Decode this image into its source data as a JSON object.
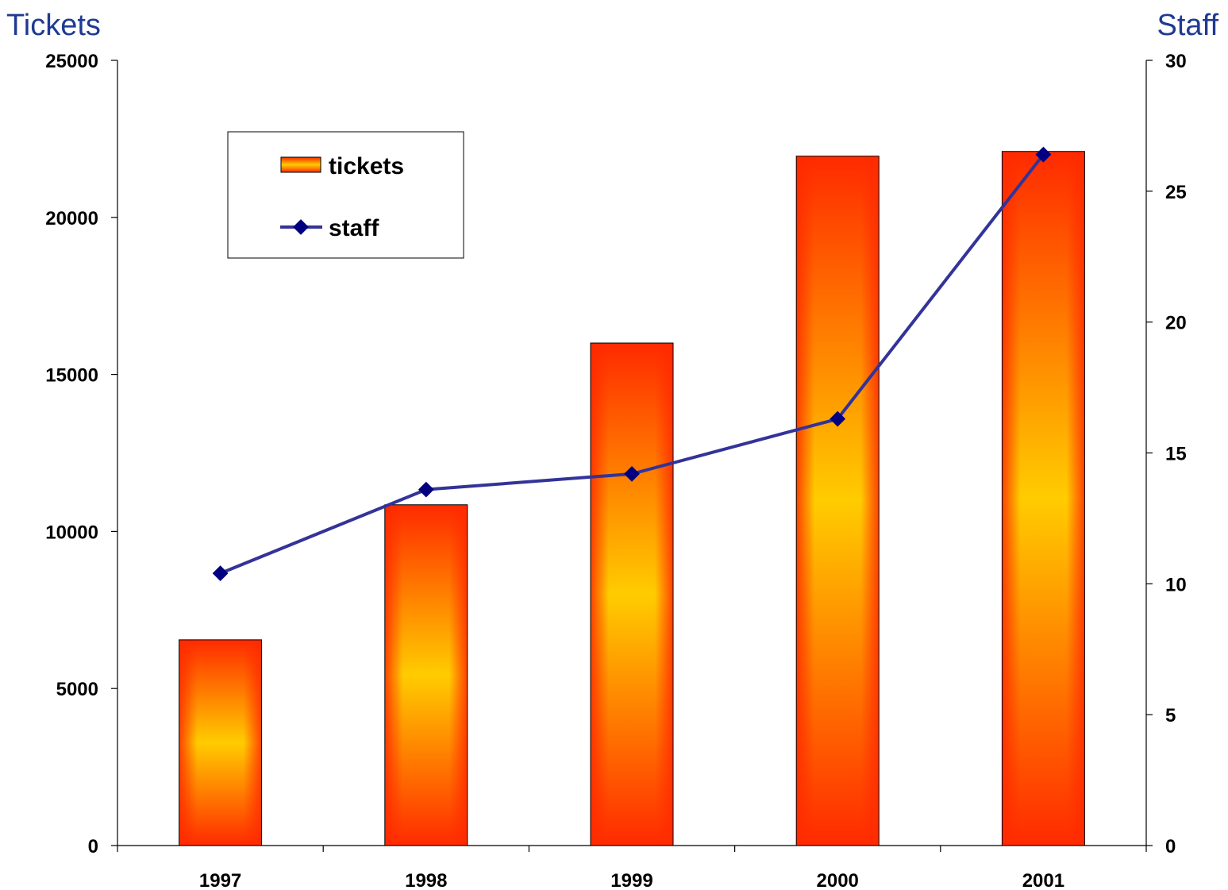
{
  "chart_data": {
    "type": "bar",
    "categories": [
      "1997",
      "1998",
      "1999",
      "2000",
      "2001"
    ],
    "series": [
      {
        "name": "tickets",
        "type": "bar",
        "axis": "left",
        "values": [
          6550,
          10850,
          16000,
          21950,
          22100
        ]
      },
      {
        "name": "staff",
        "type": "line",
        "axis": "right",
        "values": [
          10.4,
          13.6,
          14.2,
          16.3,
          26.4
        ]
      }
    ],
    "y_left": {
      "label": "Tickets",
      "ylim": [
        0,
        25000
      ],
      "ticks": [
        "0",
        "5000",
        "10000",
        "15000",
        "20000",
        "25000"
      ]
    },
    "y_right": {
      "label": "Staff",
      "ylim": [
        0,
        30
      ],
      "ticks": [
        "0",
        "5",
        "10",
        "15",
        "20",
        "25",
        "30"
      ]
    },
    "grid": false,
    "legend": "top-left",
    "colors": {
      "bar_edge": "#ff2a00",
      "bar_center": "#ffcc00",
      "line": "#333399",
      "marker": "#000080",
      "axis_title": "#1f3a93"
    }
  }
}
